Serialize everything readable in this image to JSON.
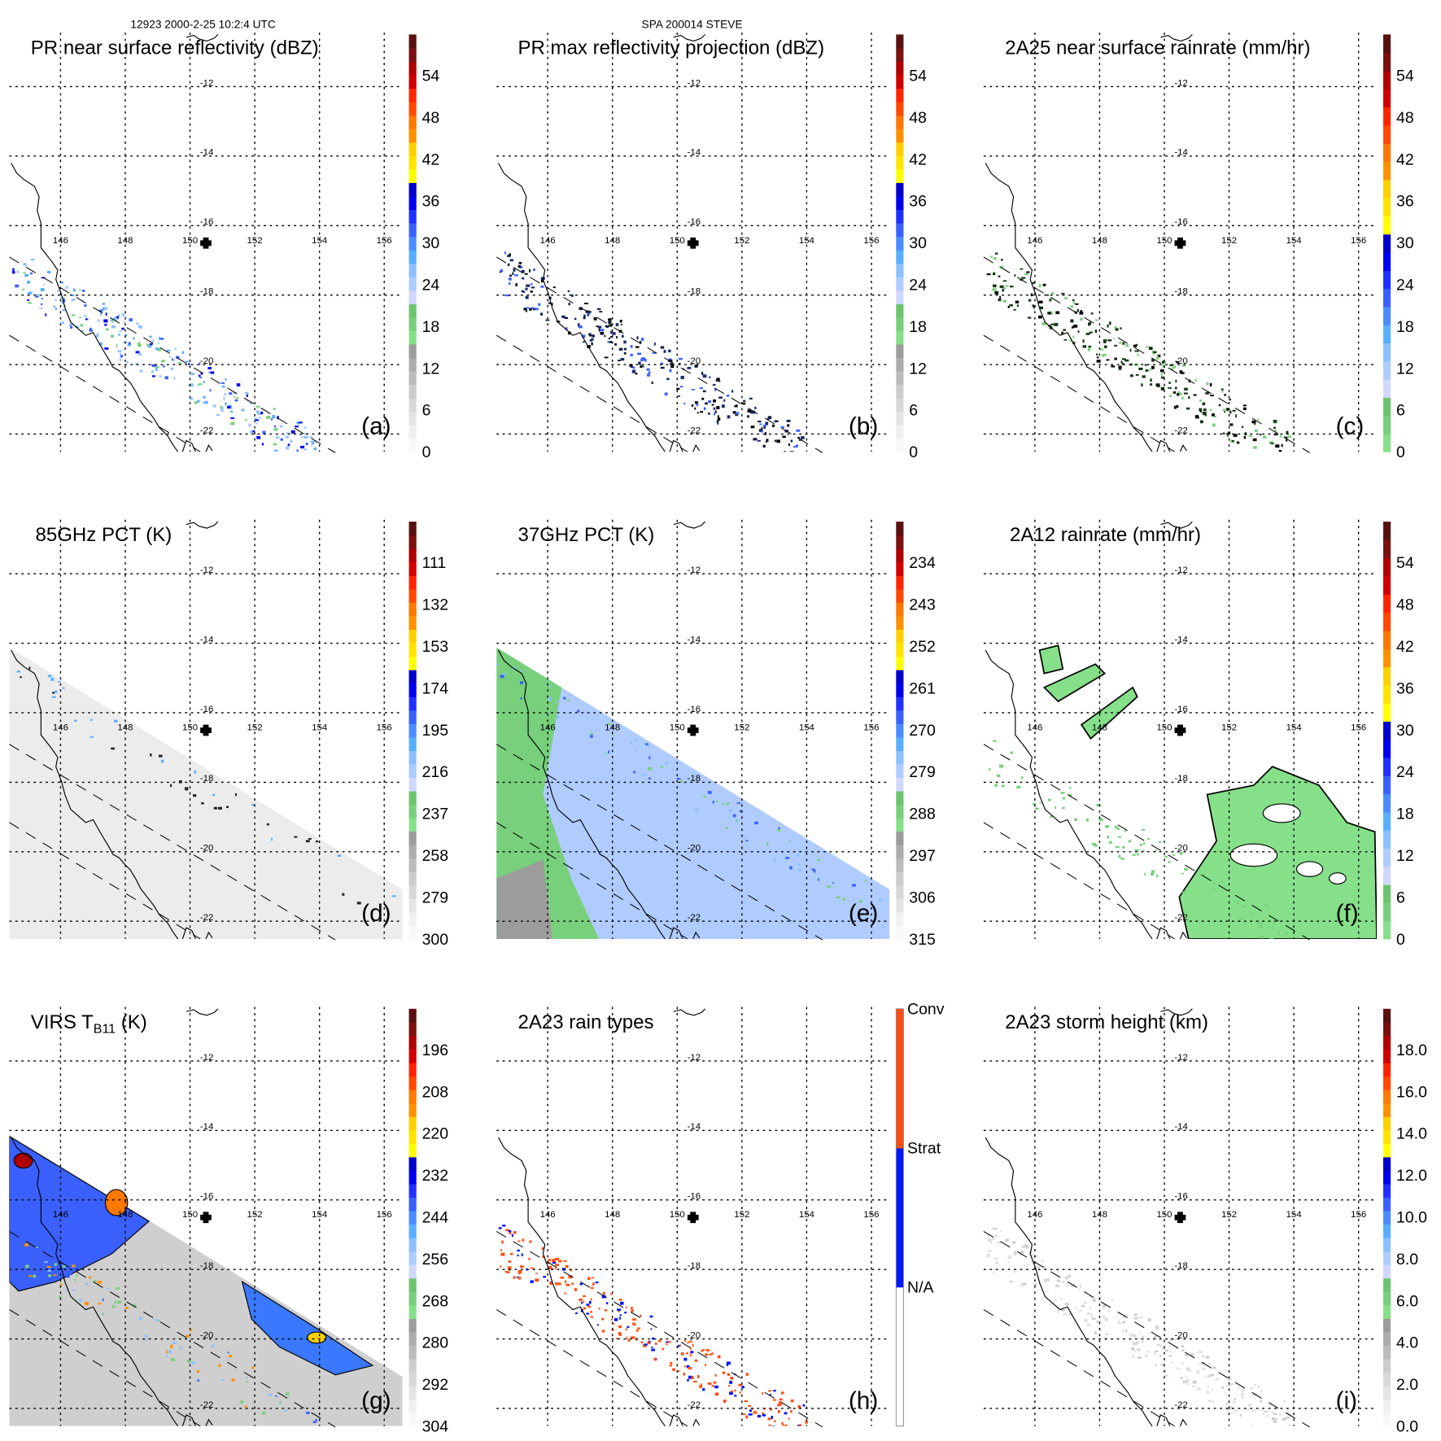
{
  "header": {
    "left": "12923 2000-2-25 10:2:4 UTC",
    "center": "SPA 200014 STEVE"
  },
  "lon_labels": [
    "146",
    "148",
    "150",
    "152",
    "154",
    "156"
  ],
  "lat_labels": [
    "-12",
    "-14",
    "-16",
    "-18",
    "-20",
    "-22"
  ],
  "palettes": {
    "standard": [
      "#f8f8f8",
      "#f0f0f0",
      "#e4e4e4",
      "#d8d8d8",
      "#cccccc",
      "#bcbcbc",
      "#acacac",
      "#9c9c9c",
      "#86e08a",
      "#78d07c",
      "#6cc46e",
      "#d0d8ff",
      "#b0ccff",
      "#8cc0ff",
      "#5aaeff",
      "#4a8cff",
      "#3a60ff",
      "#2030ff",
      "#0000ee",
      "#0000c8",
      "#ffff00",
      "#ffe400",
      "#ffd000",
      "#ff9000",
      "#ff7800",
      "#ff4800",
      "#ff2400",
      "#d00000",
      "#b00000",
      "#7a1010",
      "#5a1010"
    ],
    "rain": [
      "#86e08a",
      "#78d07c",
      "#6cc46e",
      "#d0d8ff",
      "#b0ccff",
      "#8cc0ff",
      "#5aaeff",
      "#4a8cff",
      "#3a60ff",
      "#2030ff",
      "#0000ee",
      "#0000c8",
      "#ffff00",
      "#ffe400",
      "#ffd000",
      "#ff9000",
      "#ff7800",
      "#ff4800",
      "#ff2400",
      "#d00000",
      "#b00000",
      "#7a1010",
      "#5a1010"
    ],
    "raintype": [
      "#ffffff",
      "#ffffff",
      "#0018ff",
      "#0018ff",
      "#ff4a10",
      "#ff4a10"
    ]
  },
  "panels": [
    {
      "id": "a",
      "title": "PR near surface reflectivity (dBZ)",
      "label": "(a)",
      "palette": "standard",
      "ticks": [
        "0",
        "6",
        "12",
        "18",
        "24",
        "30",
        "36",
        "42",
        "48",
        "54"
      ],
      "fill": "pr",
      "dots": [
        "#8cc0ff",
        "#5aaeff",
        "#3a60ff",
        "#b0ccff",
        "#78d07c",
        "#0000ee"
      ]
    },
    {
      "id": "b",
      "title": "PR max reflectivity projection (dBZ)",
      "label": "(b)",
      "palette": "standard",
      "ticks": [
        "0",
        "6",
        "12",
        "18",
        "24",
        "30",
        "36",
        "42",
        "48",
        "54"
      ],
      "fill": "pr",
      "dots": [
        "#0a1a3a",
        "#1a2a6a",
        "#000000",
        "#3a60ff"
      ]
    },
    {
      "id": "c",
      "title": "2A25 near surface rainrate (mm/hr)",
      "label": "(c)",
      "palette": "rain",
      "ticks": [
        "0",
        "6",
        "12",
        "18",
        "24",
        "30",
        "36",
        "42",
        "48",
        "54"
      ],
      "fill": "pr",
      "dots": [
        "#0a2a0a",
        "#000000",
        "#78d07c",
        "#1a3a1a"
      ]
    },
    {
      "id": "d",
      "title": "85GHz PCT (K)",
      "label": "(d)",
      "palette": "standard",
      "ticks": [
        "300",
        "279",
        "258",
        "237",
        "216",
        "195",
        "174",
        "153",
        "132",
        "111"
      ],
      "fill": "tmi85",
      "dots": [
        "#222222",
        "#5aaeff"
      ]
    },
    {
      "id": "e",
      "title": "37GHz PCT (K)",
      "label": "(e)",
      "palette": "standard",
      "ticks": [
        "315",
        "306",
        "297",
        "288",
        "279",
        "270",
        "261",
        "252",
        "243",
        "234"
      ],
      "fill": "tmi37",
      "dots": [
        "#78d07c",
        "#8cc0ff",
        "#3a60ff"
      ]
    },
    {
      "id": "f",
      "title": "2A12 rainrate (mm/hr)",
      "label": "(f)",
      "palette": "rain",
      "ticks": [
        "0",
        "6",
        "12",
        "18",
        "24",
        "30",
        "36",
        "42",
        "48",
        "54"
      ],
      "fill": "tmirain",
      "dots": [
        "#78d07c"
      ]
    },
    {
      "id": "g",
      "title": "VIRS T",
      "title_sub": "B11",
      "title_end": " (K)",
      "label": "(g)",
      "palette": "standard",
      "ticks": [
        "304",
        "292",
        "280",
        "268",
        "256",
        "244",
        "232",
        "220",
        "208",
        "196"
      ],
      "fill": "virs",
      "dots": [
        "#3a60ff",
        "#78d07c",
        "#8cc0ff",
        "#ff9000"
      ]
    },
    {
      "id": "h",
      "title": "2A23 rain types",
      "label": "(h)",
      "palette": "raintype",
      "ticks": [
        "N/A",
        "Strat",
        "Conv"
      ],
      "categorical": true,
      "fill": "pr",
      "dots": [
        "#ff4a10",
        "#ff4a10",
        "#ff6020",
        "#0018ff"
      ]
    },
    {
      "id": "i",
      "title": "2A23 storm height (km)",
      "label": "(i)",
      "palette": "standard",
      "ticks": [
        "0.0",
        "2.0",
        "4.0",
        "6.0",
        "8.0",
        "10.0",
        "12.0",
        "14.0",
        "16.0",
        "18.0"
      ],
      "fill": "pr",
      "dots": [
        "#d8d8d8",
        "#cccccc",
        "#e4e4e4"
      ]
    }
  ]
}
